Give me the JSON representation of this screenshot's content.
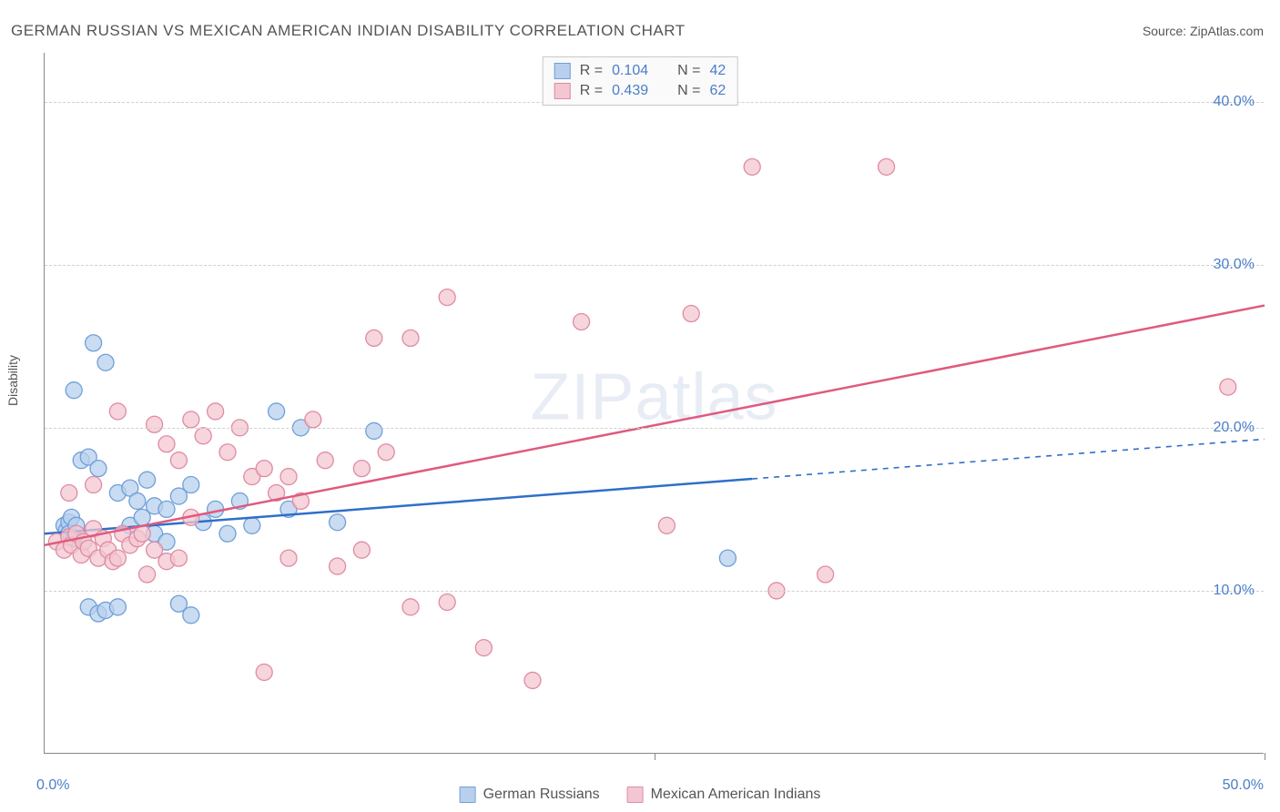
{
  "title": "GERMAN RUSSIAN VS MEXICAN AMERICAN INDIAN DISABILITY CORRELATION CHART",
  "source": "Source: ZipAtlas.com",
  "watermark": "ZIPatlas",
  "y_axis_label": "Disability",
  "chart": {
    "type": "scatter",
    "xlim": [
      0,
      50
    ],
    "ylim": [
      0,
      43
    ],
    "x_ticks": [
      0,
      25,
      50
    ],
    "x_tick_labels": [
      "0.0%",
      "",
      "50.0%"
    ],
    "y_ticks": [
      10,
      20,
      30,
      40
    ],
    "y_tick_labels": [
      "10.0%",
      "20.0%",
      "30.0%",
      "40.0%"
    ],
    "grid_color": "#d0d0d0",
    "background_color": "#ffffff",
    "marker_radius": 9,
    "marker_stroke_width": 1.3,
    "line_width": 2.5,
    "series": [
      {
        "name": "German Russians",
        "fill": "#b8d0ed",
        "stroke": "#6f9fd8",
        "line_color": "#2f6fc9",
        "r": 0.104,
        "n": 42,
        "trend": {
          "x1": 0,
          "y1": 13.5,
          "x2": 50,
          "y2": 19.3,
          "solid_until_x": 29
        },
        "points": [
          [
            0.8,
            14
          ],
          [
            0.9,
            13.7
          ],
          [
            1.0,
            14.2
          ],
          [
            1.0,
            13.5
          ],
          [
            1.1,
            14.5
          ],
          [
            1.2,
            13.2
          ],
          [
            1.3,
            14.0
          ],
          [
            1.8,
            9.0
          ],
          [
            2.2,
            8.6
          ],
          [
            2.5,
            8.8
          ],
          [
            3.0,
            9.0
          ],
          [
            1.2,
            22.3
          ],
          [
            2.0,
            25.2
          ],
          [
            2.5,
            24.0
          ],
          [
            1.5,
            18.0
          ],
          [
            1.8,
            18.2
          ],
          [
            2.2,
            17.5
          ],
          [
            3.0,
            16.0
          ],
          [
            3.5,
            16.3
          ],
          [
            3.8,
            15.5
          ],
          [
            4.2,
            16.8
          ],
          [
            4.5,
            15.2
          ],
          [
            3.5,
            14.0
          ],
          [
            4.0,
            14.5
          ],
          [
            4.5,
            13.5
          ],
          [
            5.0,
            15.0
          ],
          [
            5.5,
            15.8
          ],
          [
            5.0,
            13.0
          ],
          [
            6.0,
            16.5
          ],
          [
            6.5,
            14.2
          ],
          [
            7.0,
            15.0
          ],
          [
            5.5,
            9.2
          ],
          [
            6.0,
            8.5
          ],
          [
            7.5,
            13.5
          ],
          [
            8.0,
            15.5
          ],
          [
            8.5,
            14.0
          ],
          [
            10.0,
            15.0
          ],
          [
            12.0,
            14.2
          ],
          [
            13.5,
            19.8
          ],
          [
            9.5,
            21.0
          ],
          [
            10.5,
            20.0
          ],
          [
            28.0,
            12.0
          ]
        ]
      },
      {
        "name": "Mexican American Indians",
        "fill": "#f3c7d2",
        "stroke": "#e08ba2",
        "line_color": "#e05a7d",
        "r": 0.439,
        "n": 62,
        "trend": {
          "x1": 0,
          "y1": 12.8,
          "x2": 50,
          "y2": 27.5,
          "solid_until_x": 50
        },
        "points": [
          [
            0.5,
            13.0
          ],
          [
            0.8,
            12.5
          ],
          [
            1.0,
            13.3
          ],
          [
            1.1,
            12.8
          ],
          [
            1.3,
            13.5
          ],
          [
            1.5,
            12.2
          ],
          [
            1.6,
            13.0
          ],
          [
            1.8,
            12.6
          ],
          [
            2.0,
            13.8
          ],
          [
            2.2,
            12.0
          ],
          [
            2.4,
            13.2
          ],
          [
            2.6,
            12.5
          ],
          [
            2.8,
            11.8
          ],
          [
            1.0,
            16.0
          ],
          [
            2.0,
            16.5
          ],
          [
            3.0,
            12.0
          ],
          [
            3.2,
            13.5
          ],
          [
            3.5,
            12.8
          ],
          [
            3.8,
            13.2
          ],
          [
            4.0,
            13.5
          ],
          [
            4.2,
            11.0
          ],
          [
            4.5,
            12.5
          ],
          [
            5.0,
            11.8
          ],
          [
            5.5,
            12.0
          ],
          [
            3.0,
            21.0
          ],
          [
            4.5,
            20.2
          ],
          [
            5.0,
            19.0
          ],
          [
            5.5,
            18.0
          ],
          [
            6.0,
            20.5
          ],
          [
            6.5,
            19.5
          ],
          [
            7.0,
            21.0
          ],
          [
            7.5,
            18.5
          ],
          [
            8.0,
            20.0
          ],
          [
            8.5,
            17.0
          ],
          [
            9.0,
            17.5
          ],
          [
            9.5,
            16.0
          ],
          [
            10.0,
            17.0
          ],
          [
            10.5,
            15.5
          ],
          [
            11.0,
            20.5
          ],
          [
            11.5,
            18.0
          ],
          [
            13.0,
            17.5
          ],
          [
            14.0,
            18.5
          ],
          [
            13.5,
            25.5
          ],
          [
            15.0,
            25.5
          ],
          [
            16.5,
            28.0
          ],
          [
            10.0,
            12.0
          ],
          [
            12.0,
            11.5
          ],
          [
            13.0,
            12.5
          ],
          [
            15.0,
            9.0
          ],
          [
            16.5,
            9.3
          ],
          [
            18.0,
            6.5
          ],
          [
            20.0,
            4.5
          ],
          [
            9.0,
            5.0
          ],
          [
            22.0,
            26.5
          ],
          [
            26.5,
            27.0
          ],
          [
            25.5,
            14.0
          ],
          [
            29.0,
            36.0
          ],
          [
            34.5,
            36.0
          ],
          [
            30.0,
            10.0
          ],
          [
            32.0,
            11.0
          ],
          [
            48.5,
            22.5
          ],
          [
            6.0,
            14.5
          ]
        ]
      }
    ]
  },
  "bottom_legend": [
    {
      "label": "German Russians",
      "fill": "#b8d0ed",
      "stroke": "#6f9fd8"
    },
    {
      "label": "Mexican American Indians",
      "fill": "#f3c7d2",
      "stroke": "#e08ba2"
    }
  ],
  "top_legend": [
    {
      "fill": "#b8d0ed",
      "stroke": "#6f9fd8",
      "r": "0.104",
      "n": "42"
    },
    {
      "fill": "#f3c7d2",
      "stroke": "#e08ba2",
      "r": "0.439",
      "n": "62"
    }
  ],
  "colors": {
    "title": "#555555",
    "axis_text": "#4a7ec9"
  }
}
